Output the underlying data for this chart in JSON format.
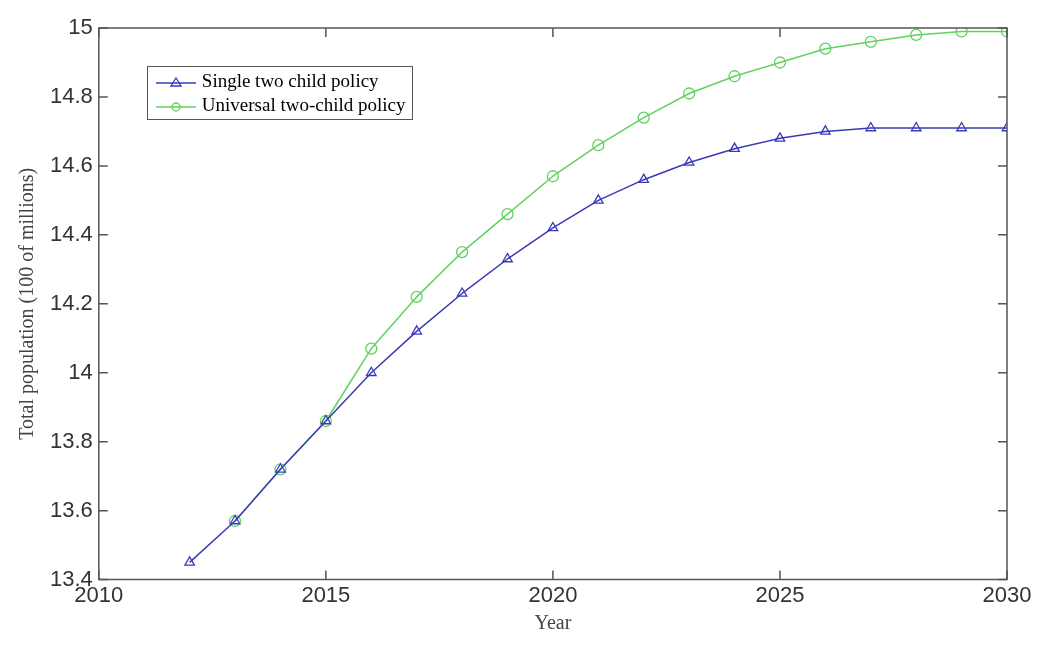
{
  "chart_data": {
    "type": "line",
    "xlabel": "Year",
    "ylabel": "Total population (100 of millions)",
    "xlim": [
      2010,
      2030
    ],
    "xticks": [
      2010,
      2015,
      2020,
      2025,
      2030
    ],
    "ylim": [
      13.4,
      15
    ],
    "yticks": [
      13.4,
      13.6,
      13.8,
      14,
      14.2,
      14.4,
      14.6,
      14.8,
      15
    ],
    "grid": false,
    "legend": "top left",
    "series": [
      {
        "name": "Single two child policy",
        "color": "#3a3ab8",
        "marker": "triangle",
        "x": [
          2012,
          2013,
          2014,
          2015,
          2016,
          2017,
          2018,
          2019,
          2020,
          2021,
          2022,
          2023,
          2024,
          2025,
          2026,
          2027,
          2028,
          2029,
          2030
        ],
        "values": [
          13.45,
          13.57,
          13.72,
          13.86,
          14.0,
          14.12,
          14.23,
          14.33,
          14.42,
          14.5,
          14.56,
          14.61,
          14.65,
          14.68,
          14.7,
          14.71,
          14.71,
          14.71,
          14.71
        ]
      },
      {
        "name": "Universal two-child policy",
        "color": "#5fd35f",
        "marker": "circle",
        "x": [
          2013,
          2014,
          2015,
          2016,
          2017,
          2018,
          2019,
          2020,
          2021,
          2022,
          2023,
          2024,
          2025,
          2026,
          2027,
          2028,
          2029,
          2030
        ],
        "values": [
          13.57,
          13.72,
          13.86,
          14.07,
          14.22,
          14.35,
          14.46,
          14.57,
          14.66,
          14.74,
          14.81,
          14.86,
          14.9,
          14.94,
          14.96,
          14.98,
          14.99,
          14.99
        ]
      }
    ]
  }
}
